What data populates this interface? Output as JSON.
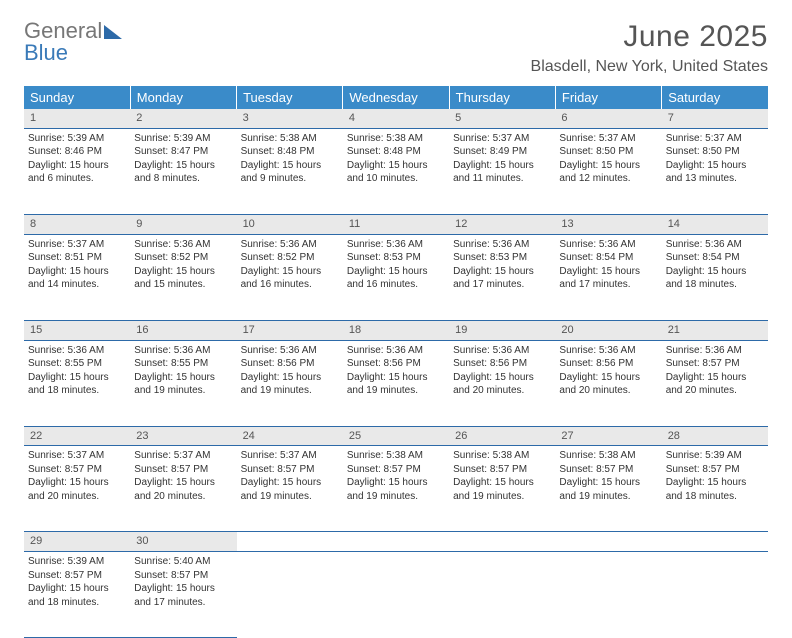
{
  "brand": {
    "general": "General",
    "blue": "Blue"
  },
  "title": "June 2025",
  "location": "Blasdell, New York, United States",
  "header_bg": "#3a8bc9",
  "border_color": "#2d6aa8",
  "daynum_bg": "#e9e9e9",
  "text_color": "#333333",
  "days": [
    "Sunday",
    "Monday",
    "Tuesday",
    "Wednesday",
    "Thursday",
    "Friday",
    "Saturday"
  ],
  "weeks": [
    [
      {
        "n": "1",
        "sr": "5:39 AM",
        "ss": "8:46 PM",
        "d1": "15 hours",
        "d2": "and 6 minutes."
      },
      {
        "n": "2",
        "sr": "5:39 AM",
        "ss": "8:47 PM",
        "d1": "15 hours",
        "d2": "and 8 minutes."
      },
      {
        "n": "3",
        "sr": "5:38 AM",
        "ss": "8:48 PM",
        "d1": "15 hours",
        "d2": "and 9 minutes."
      },
      {
        "n": "4",
        "sr": "5:38 AM",
        "ss": "8:48 PM",
        "d1": "15 hours",
        "d2": "and 10 minutes."
      },
      {
        "n": "5",
        "sr": "5:37 AM",
        "ss": "8:49 PM",
        "d1": "15 hours",
        "d2": "and 11 minutes."
      },
      {
        "n": "6",
        "sr": "5:37 AM",
        "ss": "8:50 PM",
        "d1": "15 hours",
        "d2": "and 12 minutes."
      },
      {
        "n": "7",
        "sr": "5:37 AM",
        "ss": "8:50 PM",
        "d1": "15 hours",
        "d2": "and 13 minutes."
      }
    ],
    [
      {
        "n": "8",
        "sr": "5:37 AM",
        "ss": "8:51 PM",
        "d1": "15 hours",
        "d2": "and 14 minutes."
      },
      {
        "n": "9",
        "sr": "5:36 AM",
        "ss": "8:52 PM",
        "d1": "15 hours",
        "d2": "and 15 minutes."
      },
      {
        "n": "10",
        "sr": "5:36 AM",
        "ss": "8:52 PM",
        "d1": "15 hours",
        "d2": "and 16 minutes."
      },
      {
        "n": "11",
        "sr": "5:36 AM",
        "ss": "8:53 PM",
        "d1": "15 hours",
        "d2": "and 16 minutes."
      },
      {
        "n": "12",
        "sr": "5:36 AM",
        "ss": "8:53 PM",
        "d1": "15 hours",
        "d2": "and 17 minutes."
      },
      {
        "n": "13",
        "sr": "5:36 AM",
        "ss": "8:54 PM",
        "d1": "15 hours",
        "d2": "and 17 minutes."
      },
      {
        "n": "14",
        "sr": "5:36 AM",
        "ss": "8:54 PM",
        "d1": "15 hours",
        "d2": "and 18 minutes."
      }
    ],
    [
      {
        "n": "15",
        "sr": "5:36 AM",
        "ss": "8:55 PM",
        "d1": "15 hours",
        "d2": "and 18 minutes."
      },
      {
        "n": "16",
        "sr": "5:36 AM",
        "ss": "8:55 PM",
        "d1": "15 hours",
        "d2": "and 19 minutes."
      },
      {
        "n": "17",
        "sr": "5:36 AM",
        "ss": "8:56 PM",
        "d1": "15 hours",
        "d2": "and 19 minutes."
      },
      {
        "n": "18",
        "sr": "5:36 AM",
        "ss": "8:56 PM",
        "d1": "15 hours",
        "d2": "and 19 minutes."
      },
      {
        "n": "19",
        "sr": "5:36 AM",
        "ss": "8:56 PM",
        "d1": "15 hours",
        "d2": "and 20 minutes."
      },
      {
        "n": "20",
        "sr": "5:36 AM",
        "ss": "8:56 PM",
        "d1": "15 hours",
        "d2": "and 20 minutes."
      },
      {
        "n": "21",
        "sr": "5:36 AM",
        "ss": "8:57 PM",
        "d1": "15 hours",
        "d2": "and 20 minutes."
      }
    ],
    [
      {
        "n": "22",
        "sr": "5:37 AM",
        "ss": "8:57 PM",
        "d1": "15 hours",
        "d2": "and 20 minutes."
      },
      {
        "n": "23",
        "sr": "5:37 AM",
        "ss": "8:57 PM",
        "d1": "15 hours",
        "d2": "and 20 minutes."
      },
      {
        "n": "24",
        "sr": "5:37 AM",
        "ss": "8:57 PM",
        "d1": "15 hours",
        "d2": "and 19 minutes."
      },
      {
        "n": "25",
        "sr": "5:38 AM",
        "ss": "8:57 PM",
        "d1": "15 hours",
        "d2": "and 19 minutes."
      },
      {
        "n": "26",
        "sr": "5:38 AM",
        "ss": "8:57 PM",
        "d1": "15 hours",
        "d2": "and 19 minutes."
      },
      {
        "n": "27",
        "sr": "5:38 AM",
        "ss": "8:57 PM",
        "d1": "15 hours",
        "d2": "and 19 minutes."
      },
      {
        "n": "28",
        "sr": "5:39 AM",
        "ss": "8:57 PM",
        "d1": "15 hours",
        "d2": "and 18 minutes."
      }
    ],
    [
      {
        "n": "29",
        "sr": "5:39 AM",
        "ss": "8:57 PM",
        "d1": "15 hours",
        "d2": "and 18 minutes."
      },
      {
        "n": "30",
        "sr": "5:40 AM",
        "ss": "8:57 PM",
        "d1": "15 hours",
        "d2": "and 17 minutes."
      },
      null,
      null,
      null,
      null,
      null
    ]
  ],
  "labels": {
    "sunrise": "Sunrise:",
    "sunset": "Sunset:",
    "daylight": "Daylight:"
  }
}
